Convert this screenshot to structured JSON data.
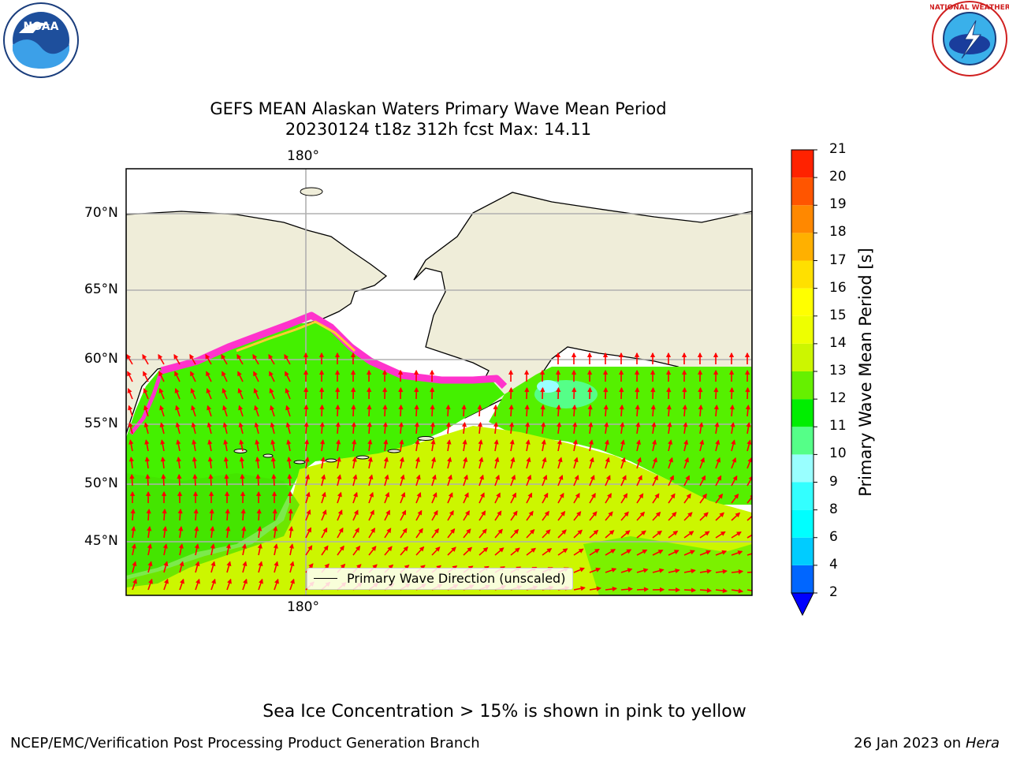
{
  "title_line1": "GEFS MEAN Alaskan Waters Primary Wave Mean Period",
  "title_line2": "20230124 t18z 312h fcst   Max: 14.11",
  "logos": {
    "left": "NOAA",
    "right": "NATIONAL WEATHER SERVICE"
  },
  "map": {
    "lon_label_top": "180°",
    "lon_label_bottom": "180°",
    "lat_labels": [
      "70°N",
      "65°N",
      "60°N",
      "55°N",
      "50°N",
      "45°N"
    ],
    "legend_label": "Primary Wave Direction (unscaled)",
    "colors": {
      "land": "#efedd9",
      "ocean_green": "#44f000",
      "ocean_yellow": "#ccf600",
      "arrow": "#ff0000",
      "sea_ice": "#ff33cc"
    }
  },
  "colorbar": {
    "label": "Primary Wave Mean Period [s]",
    "ticks": [
      "2",
      "4",
      "6",
      "8",
      "9",
      "10",
      "11",
      "12",
      "13",
      "14",
      "15",
      "16",
      "17",
      "18",
      "19",
      "20",
      "21"
    ],
    "colors": [
      "#0066ff",
      "#00ccff",
      "#00ffff",
      "#33ffff",
      "#99ffff",
      "#55ff88",
      "#00ee00",
      "#66f000",
      "#ccf600",
      "#eeff00",
      "#ffff00",
      "#ffe000",
      "#ffb000",
      "#ff8800",
      "#ff5500",
      "#ff2200"
    ]
  },
  "footer_note": "Sea Ice Concentration > 15% is shown in pink to yellow",
  "footer_left": "NCEP/EMC/Verification Post Processing Product Generation Branch",
  "footer_right_date": "26 Jan 2023 on ",
  "footer_right_host": "Hera"
}
